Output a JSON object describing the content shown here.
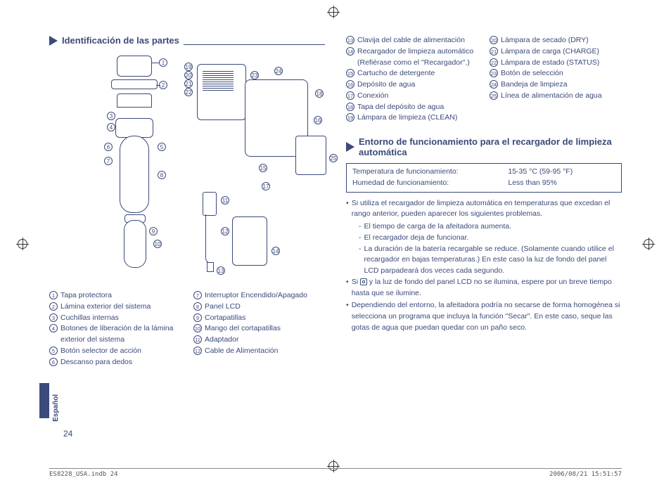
{
  "section1_title": "Identificación de las partes",
  "section2_title": "Entorno de funcionamiento para el recargador de limpieza automática",
  "parts_left": [
    {
      "n": "1",
      "label": "Tapa protectora"
    },
    {
      "n": "2",
      "label": "Lámina exterior del sistema"
    },
    {
      "n": "3",
      "label": "Cuchillas internas"
    },
    {
      "n": "4",
      "label": "Botones de liberación de la lámina exterior del sistema"
    },
    {
      "n": "5",
      "label": "Botón selector de acción"
    },
    {
      "n": "6",
      "label": "Descanso para dedos"
    }
  ],
  "parts_right": [
    {
      "n": "7",
      "label": "Interruptor Encendido/Apagado"
    },
    {
      "n": "8",
      "label": "Panel LCD"
    },
    {
      "n": "9",
      "label": "Cortapatillas"
    },
    {
      "n": "10",
      "label": "Mango del cortapatillas"
    },
    {
      "n": "11",
      "label": "Adaptador"
    },
    {
      "n": "12",
      "label": "Cable de Alimentación"
    }
  ],
  "parts_col3": [
    {
      "n": "13",
      "label": "Clavija del cable de alimentación"
    },
    {
      "n": "14",
      "label": "Recargador de limpieza automático (Refiérase como el \"Recargador\".)"
    },
    {
      "n": "15",
      "label": "Cartucho de detergente"
    },
    {
      "n": "16",
      "label": "Depósito de agua"
    },
    {
      "n": "17",
      "label": "Conexión"
    },
    {
      "n": "18",
      "label": "Tapa del depósito de agua"
    },
    {
      "n": "19",
      "label": "Lámpara de limpieza (CLEAN)"
    }
  ],
  "parts_col4": [
    {
      "n": "20",
      "label": "Lámpara de secado (DRY)"
    },
    {
      "n": "21",
      "label": "Lámpara de carga (CHARGE)"
    },
    {
      "n": "22",
      "label": "Lámpara de estado (STATUS)"
    },
    {
      "n": "23",
      "label": "Botón de selección"
    },
    {
      "n": "24",
      "label": "Bandeja de limpieza"
    },
    {
      "n": "25",
      "label": "Línea de alimentación de agua"
    }
  ],
  "env": {
    "temp_label": "Temperatura de funcionamiento:",
    "temp_val": "15-35 °C (59-95 °F)",
    "hum_label": "Humedad de funcionamiento:",
    "hum_val": "Less than 95%"
  },
  "notes": {
    "b1": "Si utiliza el recargador de limpieza automática en temperaturas que excedan el rango anterior, pueden aparecer los siguientes problemas.",
    "d1": "El tiempo de carga de la afeitadora aumenta.",
    "d2": "El recargador deja de funcionar.",
    "d3": "La duración de la batería recargable se reduce. (Solamente cuando utilice el recargador en bajas temperaturas.) En este caso la luz de fondo del panel LCD parpadeará dos veces cada segundo.",
    "b2a": "Si ",
    "b2b": " y la luz de fondo del panel LCD no se ilumina, espere por un breve tiempo hasta que se ilumine.",
    "b3": "Dependiendo del entorno, la afeitadora podría no secarse de forma homogénea si selecciona un programa que incluya la función \"Secar\". En este caso, seque las gotas de agua que puedan quedar con un paño seco."
  },
  "side_label": "Español",
  "page_number": "24",
  "footer_left": "ES8228_USA.indb   24",
  "footer_right": "2006/08/21   15:51:57"
}
